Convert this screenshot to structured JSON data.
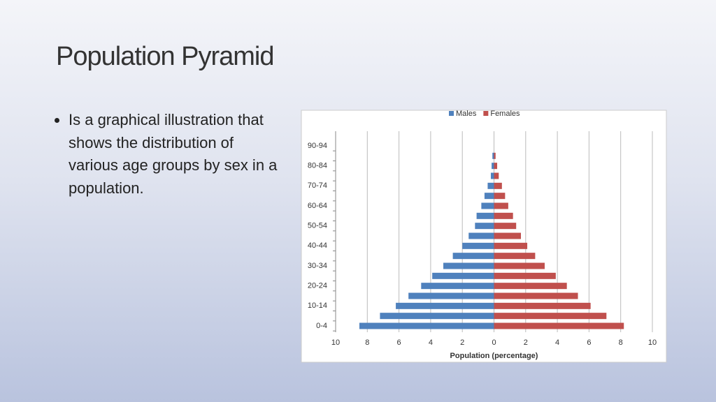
{
  "slide": {
    "title": "Population Pyramid",
    "bullet": "Is a graphical illustration that shows the distribution of various age groups by sex in a population."
  },
  "chart_data": {
    "type": "bar",
    "orientation": "horizontal",
    "stacked": false,
    "xlabel": "Population (percentage)",
    "categories": [
      "0-4",
      null,
      "10-14",
      null,
      "20-24",
      null,
      "30-34",
      null,
      "40-44",
      null,
      "50-54",
      null,
      "60-64",
      null,
      "70-74",
      null,
      "80-84",
      null,
      "90-94"
    ],
    "series": [
      {
        "name": "Males",
        "color": "#4f81bd",
        "values": [
          -8.5,
          -7.2,
          -6.2,
          -5.4,
          -4.6,
          -3.9,
          -3.2,
          -2.6,
          -2.0,
          -1.6,
          -1.2,
          -1.1,
          -0.8,
          -0.6,
          -0.4,
          -0.2,
          -0.15,
          -0.1,
          0
        ]
      },
      {
        "name": "Females",
        "color": "#c0504d",
        "values": [
          8.2,
          7.1,
          6.1,
          5.3,
          4.6,
          3.9,
          3.2,
          2.6,
          2.1,
          1.7,
          1.4,
          1.2,
          0.9,
          0.7,
          0.5,
          0.3,
          0.2,
          0.1,
          0
        ]
      }
    ],
    "xlim": [
      -10,
      10
    ],
    "xticks": [
      {
        "value": -10,
        "label": "10"
      },
      {
        "value": -8,
        "label": "8"
      },
      {
        "value": -6,
        "label": "6"
      },
      {
        "value": -4,
        "label": "4"
      },
      {
        "value": -2,
        "label": "2"
      },
      0,
      2,
      4,
      6,
      8,
      10
    ],
    "grid": true,
    "legend": "top"
  }
}
